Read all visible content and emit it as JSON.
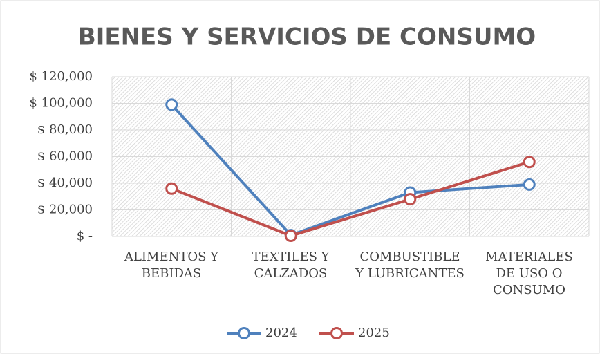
{
  "chart_data": {
    "type": "line",
    "title": "BIENES Y SERVICIOS DE CONSUMO",
    "categories": [
      "ALIMENTOS Y\nBEBIDAS",
      "TEXTILES Y\nCALZADOS",
      "COMBUSTIBLE\nY LUBRICANTES",
      "MATERIALES\nDE USO O\nCONSUMO"
    ],
    "series": [
      {
        "name": "2024",
        "color": "#4f81bd",
        "values": [
          99000,
          1000,
          33000,
          39000
        ]
      },
      {
        "name": "2025",
        "color": "#c0504d",
        "values": [
          36000,
          500,
          28000,
          56000
        ]
      }
    ],
    "ylim": [
      0,
      120000
    ],
    "yticks": [
      {
        "value": 0,
        "label": "$ -"
      },
      {
        "value": 20000,
        "label": "$ 20,000"
      },
      {
        "value": 40000,
        "label": "$ 40,000"
      },
      {
        "value": 60000,
        "label": "$ 60,000"
      },
      {
        "value": 80000,
        "label": "$ 80,000"
      },
      {
        "value": 100000,
        "label": "$ 100,000"
      },
      {
        "value": 120000,
        "label": "$ 120,000"
      }
    ],
    "grid": true,
    "legend": "bottom"
  }
}
